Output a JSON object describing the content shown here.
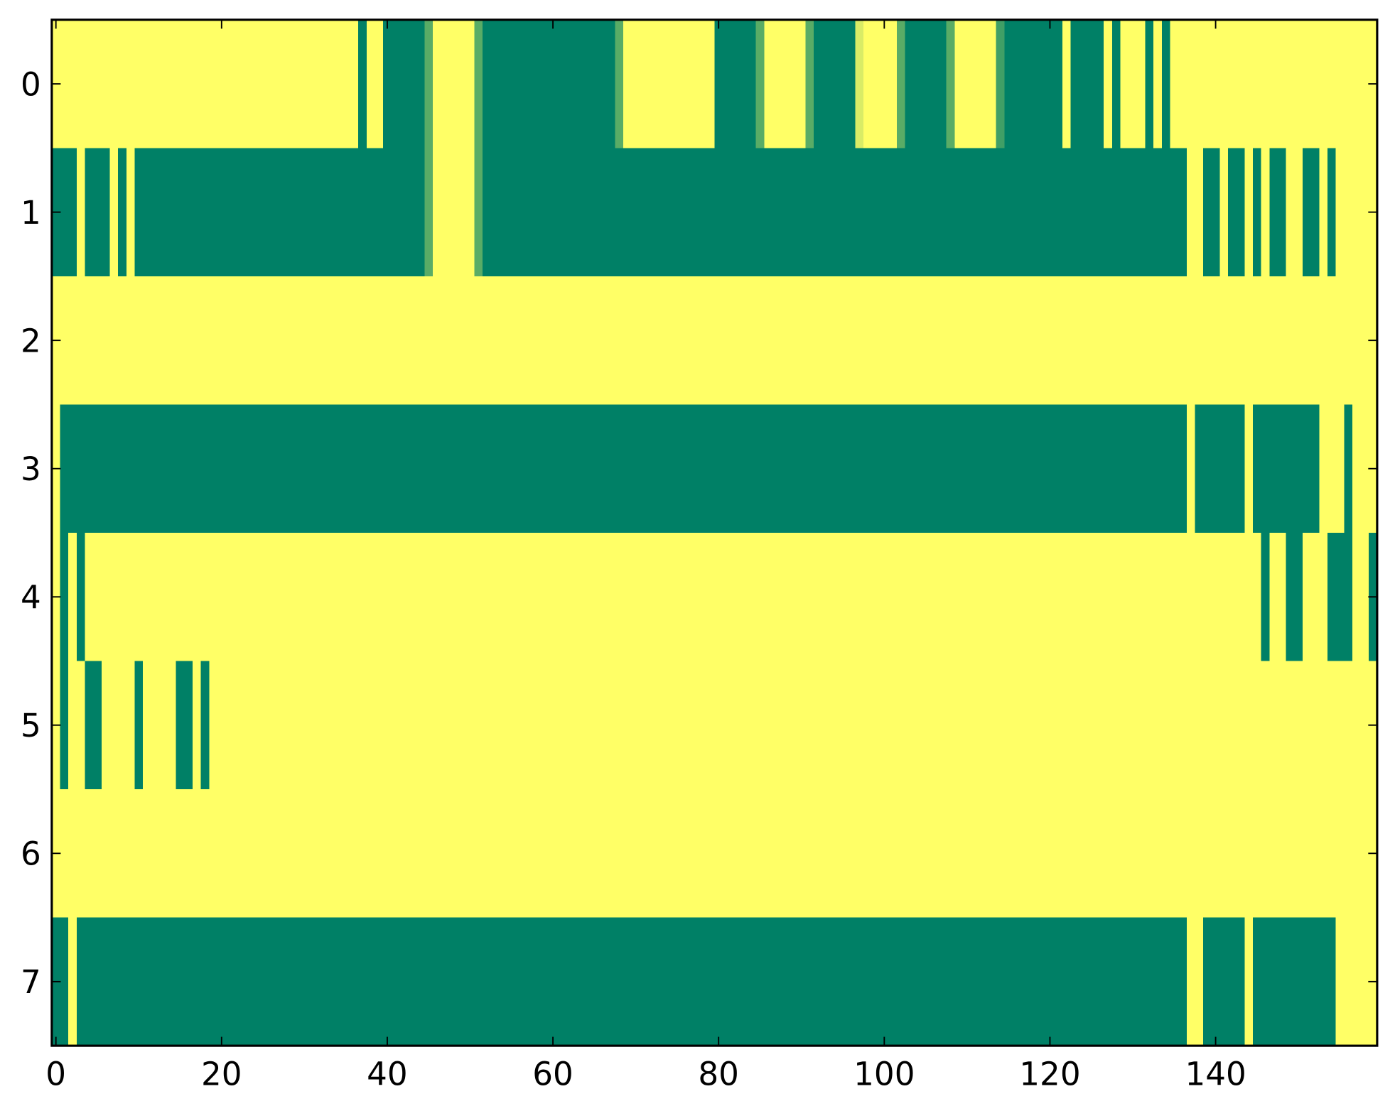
{
  "chart_data": {
    "type": "heatmap",
    "colormap": "summer",
    "zlim": [
      0,
      1
    ],
    "xlim": [
      -0.5,
      159.5
    ],
    "ylim": [
      7.5,
      -0.5
    ],
    "xticks": [
      0,
      20,
      40,
      60,
      80,
      100,
      120,
      140
    ],
    "yticks": [
      0,
      1,
      2,
      3,
      4,
      5,
      6,
      7
    ],
    "z": [
      [
        1,
        1,
        1,
        1,
        1,
        1,
        1,
        1,
        1,
        1,
        1,
        1,
        1,
        1,
        1,
        1,
        1,
        1,
        1,
        1,
        1,
        1,
        1,
        1,
        1,
        1,
        1,
        1,
        1,
        1,
        1,
        1,
        1,
        1,
        1,
        1,
        1,
        0,
        1,
        1,
        0,
        0,
        0,
        0,
        0,
        0.35,
        1,
        1,
        1,
        1,
        1,
        0.35,
        0,
        0,
        0,
        0,
        0,
        0,
        0,
        0,
        0,
        0,
        0,
        0,
        0,
        0,
        0,
        0,
        0.35,
        1,
        1,
        1,
        1,
        1,
        1,
        1,
        1,
        1,
        1,
        1,
        0,
        0,
        0,
        0,
        0,
        0.35,
        1,
        1,
        1,
        1,
        1,
        0.35,
        0,
        0,
        0,
        0,
        0,
        0.85,
        1,
        1,
        1,
        1,
        0.35,
        0,
        0,
        0,
        0,
        0,
        0.35,
        1,
        1,
        1,
        1,
        1,
        0.25,
        0,
        0,
        0,
        0,
        0,
        0,
        0,
        1,
        0,
        0,
        0,
        0,
        1,
        0,
        1,
        1,
        1,
        0,
        1,
        0,
        1,
        1,
        1,
        1,
        1,
        1,
        1,
        1,
        1,
        1,
        1,
        1,
        1,
        1,
        1,
        1,
        1,
        1,
        1,
        1,
        1,
        1,
        1,
        1,
        1
      ],
      [
        0,
        0,
        0,
        1,
        0,
        0,
        0,
        1,
        0,
        1,
        0,
        0,
        0,
        0,
        0,
        0,
        0,
        0,
        0,
        0,
        0,
        0,
        0,
        0,
        0,
        0,
        0,
        0,
        0,
        0,
        0,
        0,
        0,
        0,
        0,
        0,
        0,
        0,
        0,
        0,
        0,
        0,
        0,
        0,
        0,
        0.35,
        1,
        1,
        1,
        1,
        1,
        0.35,
        0,
        0,
        0,
        0,
        0,
        0,
        0,
        0,
        0,
        0,
        0,
        0,
        0,
        0,
        0,
        0,
        0,
        0,
        0,
        0,
        0,
        0,
        0,
        0,
        0,
        0,
        0,
        0,
        0,
        0,
        0,
        0,
        0,
        0,
        0,
        0,
        0,
        0,
        0,
        0,
        0,
        0,
        0,
        0,
        0,
        0,
        0,
        0,
        0,
        0,
        0,
        0,
        0,
        0,
        0,
        0,
        0,
        0,
        0,
        0,
        0,
        0,
        0,
        0,
        0,
        0,
        0,
        0,
        0,
        0,
        0,
        0,
        0,
        0,
        0,
        0,
        0,
        0,
        0,
        0,
        0,
        0,
        0,
        0,
        0,
        1,
        1,
        0,
        0,
        1,
        0,
        0,
        1,
        0,
        1,
        0,
        0,
        1,
        1,
        0,
        0,
        1,
        0,
        1,
        1,
        1,
        1,
        1
      ],
      [
        1,
        1,
        1,
        1,
        1,
        1,
        1,
        1,
        1,
        1,
        1,
        1,
        1,
        1,
        1,
        1,
        1,
        1,
        1,
        1,
        1,
        1,
        1,
        1,
        1,
        1,
        1,
        1,
        1,
        1,
        1,
        1,
        1,
        1,
        1,
        1,
        1,
        1,
        1,
        1,
        1,
        1,
        1,
        1,
        1,
        1,
        1,
        1,
        1,
        1,
        1,
        1,
        1,
        1,
        1,
        1,
        1,
        1,
        1,
        1,
        1,
        1,
        1,
        1,
        1,
        1,
        1,
        1,
        1,
        1,
        1,
        1,
        1,
        1,
        1,
        1,
        1,
        1,
        1,
        1,
        1,
        1,
        1,
        1,
        1,
        1,
        1,
        1,
        1,
        1,
        1,
        1,
        1,
        1,
        1,
        1,
        1,
        1,
        1,
        1,
        1,
        1,
        1,
        1,
        1,
        1,
        1,
        1,
        1,
        1,
        1,
        1,
        1,
        1,
        1,
        1,
        1,
        1,
        1,
        1,
        1,
        1,
        1,
        1,
        1,
        1,
        1,
        1,
        1,
        1,
        1,
        1,
        1,
        1,
        1,
        1,
        1,
        1,
        1,
        1,
        1,
        1,
        1,
        1,
        1,
        1,
        1,
        1,
        1,
        1,
        1,
        1,
        1,
        1,
        1,
        1,
        1,
        1,
        1,
        1
      ],
      [
        1,
        0,
        0,
        0,
        0,
        0,
        0,
        0,
        0,
        0,
        0,
        0,
        0,
        0,
        0,
        0,
        0,
        0,
        0,
        0,
        0,
        0,
        0,
        0,
        0,
        0,
        0,
        0,
        0,
        0,
        0,
        0,
        0,
        0,
        0,
        0,
        0,
        0,
        0,
        0,
        0,
        0,
        0,
        0,
        0,
        0,
        0,
        0,
        0,
        0,
        0,
        0,
        0,
        0,
        0,
        0,
        0,
        0,
        0,
        0,
        0,
        0,
        0,
        0,
        0,
        0,
        0,
        0,
        0,
        0,
        0,
        0,
        0,
        0,
        0,
        0,
        0,
        0,
        0,
        0,
        0,
        0,
        0,
        0,
        0,
        0,
        0,
        0,
        0,
        0,
        0,
        0,
        0,
        0,
        0,
        0,
        0,
        0,
        0,
        0,
        0,
        0,
        0,
        0,
        0,
        0,
        0,
        0,
        0,
        0,
        0,
        0,
        0,
        0,
        0,
        0,
        0,
        0,
        0,
        0,
        0,
        0,
        0,
        0,
        0,
        0,
        0,
        0,
        0,
        0,
        0,
        0,
        0,
        0,
        0,
        0,
        0,
        1,
        0,
        0,
        0,
        0,
        0,
        0,
        1,
        0,
        0,
        0,
        0,
        0,
        0,
        0,
        0,
        1,
        1,
        1,
        0,
        1,
        1,
        1
      ],
      [
        1,
        0,
        1,
        0,
        1,
        1,
        1,
        1,
        1,
        1,
        1,
        1,
        1,
        1,
        1,
        1,
        1,
        1,
        1,
        1,
        1,
        1,
        1,
        1,
        1,
        1,
        1,
        1,
        1,
        1,
        1,
        1,
        1,
        1,
        1,
        1,
        1,
        1,
        1,
        1,
        1,
        1,
        1,
        1,
        1,
        1,
        1,
        1,
        1,
        1,
        1,
        1,
        1,
        1,
        1,
        1,
        1,
        1,
        1,
        1,
        1,
        1,
        1,
        1,
        1,
        1,
        1,
        1,
        1,
        1,
        1,
        1,
        1,
        1,
        1,
        1,
        1,
        1,
        1,
        1,
        1,
        1,
        1,
        1,
        1,
        1,
        1,
        1,
        1,
        1,
        1,
        1,
        1,
        1,
        1,
        1,
        1,
        1,
        1,
        1,
        1,
        1,
        1,
        1,
        1,
        1,
        1,
        1,
        1,
        1,
        1,
        1,
        1,
        1,
        1,
        1,
        1,
        1,
        1,
        1,
        1,
        1,
        1,
        1,
        1,
        1,
        1,
        1,
        1,
        1,
        1,
        1,
        1,
        1,
        1,
        1,
        1,
        1,
        1,
        1,
        1,
        1,
        1,
        1,
        1,
        1,
        0,
        1,
        1,
        0,
        0,
        1,
        1,
        1,
        0,
        0,
        0,
        1,
        1,
        0
      ],
      [
        1,
        0,
        1,
        1,
        0,
        0,
        1,
        1,
        1,
        1,
        0,
        1,
        1,
        1,
        1,
        0,
        0,
        1,
        0,
        1,
        1,
        1,
        1,
        1,
        1,
        1,
        1,
        1,
        1,
        1,
        1,
        1,
        1,
        1,
        1,
        1,
        1,
        1,
        1,
        1,
        1,
        1,
        1,
        1,
        1,
        1,
        1,
        1,
        1,
        1,
        1,
        1,
        1,
        1,
        1,
        1,
        1,
        1,
        1,
        1,
        1,
        1,
        1,
        1,
        1,
        1,
        1,
        1,
        1,
        1,
        1,
        1,
        1,
        1,
        1,
        1,
        1,
        1,
        1,
        1,
        1,
        1,
        1,
        1,
        1,
        1,
        1,
        1,
        1,
        1,
        1,
        1,
        1,
        1,
        1,
        1,
        1,
        1,
        1,
        1,
        1,
        1,
        1,
        1,
        1,
        1,
        1,
        1,
        1,
        1,
        1,
        1,
        1,
        1,
        1,
        1,
        1,
        1,
        1,
        1,
        1,
        1,
        1,
        1,
        1,
        1,
        1,
        1,
        1,
        1,
        1,
        1,
        1,
        1,
        1,
        1,
        1,
        1,
        1,
        1,
        1,
        1,
        1,
        1,
        1,
        1,
        1,
        1,
        1,
        1,
        1,
        1,
        1,
        1,
        1,
        1,
        1,
        1,
        1,
        1
      ],
      [
        1,
        1,
        1,
        1,
        1,
        1,
        1,
        1,
        1,
        1,
        1,
        1,
        1,
        1,
        1,
        1,
        1,
        1,
        1,
        1,
        1,
        1,
        1,
        1,
        1,
        1,
        1,
        1,
        1,
        1,
        1,
        1,
        1,
        1,
        1,
        1,
        1,
        1,
        1,
        1,
        1,
        1,
        1,
        1,
        1,
        1,
        1,
        1,
        1,
        1,
        1,
        1,
        1,
        1,
        1,
        1,
        1,
        1,
        1,
        1,
        1,
        1,
        1,
        1,
        1,
        1,
        1,
        1,
        1,
        1,
        1,
        1,
        1,
        1,
        1,
        1,
        1,
        1,
        1,
        1,
        1,
        1,
        1,
        1,
        1,
        1,
        1,
        1,
        1,
        1,
        1,
        1,
        1,
        1,
        1,
        1,
        1,
        1,
        1,
        1,
        1,
        1,
        1,
        1,
        1,
        1,
        1,
        1,
        1,
        1,
        1,
        1,
        1,
        1,
        1,
        1,
        1,
        1,
        1,
        1,
        1,
        1,
        1,
        1,
        1,
        1,
        1,
        1,
        1,
        1,
        1,
        1,
        1,
        1,
        1,
        1,
        1,
        1,
        1,
        1,
        1,
        1,
        1,
        1,
        1,
        1,
        1,
        1,
        1,
        1,
        1,
        1,
        1,
        1,
        1,
        1,
        1,
        1,
        1,
        1
      ],
      [
        0,
        0,
        1,
        0,
        0,
        0,
        0,
        0,
        0,
        0,
        0,
        0,
        0,
        0,
        0,
        0,
        0,
        0,
        0,
        0,
        0,
        0,
        0,
        0,
        0,
        0,
        0,
        0,
        0,
        0,
        0,
        0,
        0,
        0,
        0,
        0,
        0,
        0,
        0,
        0,
        0,
        0,
        0,
        0,
        0,
        0,
        0,
        0,
        0,
        0,
        0,
        0,
        0,
        0,
        0,
        0,
        0,
        0,
        0,
        0,
        0,
        0,
        0,
        0,
        0,
        0,
        0,
        0,
        0,
        0,
        0,
        0,
        0,
        0,
        0,
        0,
        0,
        0,
        0,
        0,
        0,
        0,
        0,
        0,
        0,
        0,
        0,
        0,
        0,
        0,
        0,
        0,
        0,
        0,
        0,
        0,
        0,
        0,
        0,
        0,
        0,
        0,
        0,
        0,
        0,
        0,
        0,
        0,
        0,
        0,
        0,
        0,
        0,
        0,
        0,
        0,
        0,
        0,
        0,
        0,
        0,
        0,
        0,
        0,
        0,
        0,
        0,
        0,
        0,
        0,
        0,
        0,
        0,
        0,
        0,
        0,
        0,
        1,
        1,
        0,
        0,
        0,
        0,
        0,
        1,
        0,
        0,
        0,
        0,
        0,
        0,
        0,
        0,
        0,
        0,
        1,
        1,
        1,
        1,
        1
      ]
    ]
  }
}
